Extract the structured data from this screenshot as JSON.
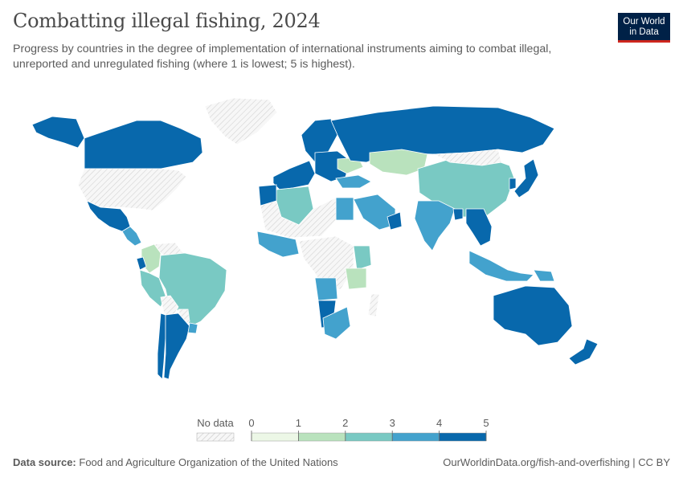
{
  "header": {
    "title": "Combatting illegal fishing, 2024",
    "subtitle": "Progress by countries in the degree of implementation of international instruments aiming to combat illegal, unreported and unregulated fishing (where 1 is lowest; 5 is highest).",
    "logo_line1": "Our World",
    "logo_line2": "in Data"
  },
  "legend": {
    "no_data_label": "No data",
    "ticks": [
      "0",
      "1",
      "2",
      "3",
      "4",
      "5"
    ],
    "colors": [
      "#ecf7e6",
      "#b9e2bd",
      "#79c9c3",
      "#43a2cd",
      "#0868ac"
    ],
    "no_data_color": "#e8e8e8"
  },
  "footer": {
    "source_label": "Data source:",
    "source_text": "Food and Agriculture Organization of the United Nations",
    "url_text": "OurWorldinData.org/fish-and-overfishing | CC BY"
  },
  "map_regions": [
    {
      "name": "Canada",
      "level": 5
    },
    {
      "name": "United States",
      "level": 0
    },
    {
      "name": "Alaska",
      "level": 5
    },
    {
      "name": "Greenland",
      "level": 0
    },
    {
      "name": "Mexico",
      "level": 5
    },
    {
      "name": "Central America",
      "level": 4
    },
    {
      "name": "Colombia",
      "level": 2
    },
    {
      "name": "Venezuela",
      "level": 0
    },
    {
      "name": "Ecuador",
      "level": 5
    },
    {
      "name": "Peru",
      "level": 3
    },
    {
      "name": "Brazil",
      "level": 3
    },
    {
      "name": "Bolivia",
      "level": 0
    },
    {
      "name": "Paraguay",
      "level": 0
    },
    {
      "name": "Chile",
      "level": 5
    },
    {
      "name": "Argentina",
      "level": 5
    },
    {
      "name": "Uruguay",
      "level": 4
    },
    {
      "name": "Western Europe",
      "level": 5
    },
    {
      "name": "Scandinavia",
      "level": 5
    },
    {
      "name": "Eastern Europe",
      "level": 5
    },
    {
      "name": "Ukraine",
      "level": 2
    },
    {
      "name": "Russia",
      "level": 5
    },
    {
      "name": "Kazakhstan",
      "level": 2
    },
    {
      "name": "Turkey",
      "level": 4
    },
    {
      "name": "China",
      "level": 3
    },
    {
      "name": "Mongolia",
      "level": 0
    },
    {
      "name": "Japan",
      "level": 5
    },
    {
      "name": "South Korea",
      "level": 5
    },
    {
      "name": "India",
      "level": 4
    },
    {
      "name": "Bangladesh",
      "level": 5
    },
    {
      "name": "Southeast Asia",
      "level": 5
    },
    {
      "name": "Indonesia",
      "level": 4
    },
    {
      "name": "Saudi Arabia",
      "level": 4
    },
    {
      "name": "Egypt",
      "level": 4
    },
    {
      "name": "Oman",
      "level": 5
    },
    {
      "name": "Algeria",
      "level": 3
    },
    {
      "name": "Morocco",
      "level": 5
    },
    {
      "name": "North Africa",
      "level": 0
    },
    {
      "name": "West Africa",
      "level": 4
    },
    {
      "name": "Central Africa",
      "level": 0
    },
    {
      "name": "Kenya",
      "level": 3
    },
    {
      "name": "Tanzania",
      "level": 2
    },
    {
      "name": "Angola",
      "level": 4
    },
    {
      "name": "Namibia",
      "level": 5
    },
    {
      "name": "South Africa",
      "level": 4
    },
    {
      "name": "Madagascar",
      "level": 0
    },
    {
      "name": "Australia",
      "level": 5
    },
    {
      "name": "New Zealand",
      "level": 5
    },
    {
      "name": "Papua New Guinea",
      "level": 4
    }
  ]
}
